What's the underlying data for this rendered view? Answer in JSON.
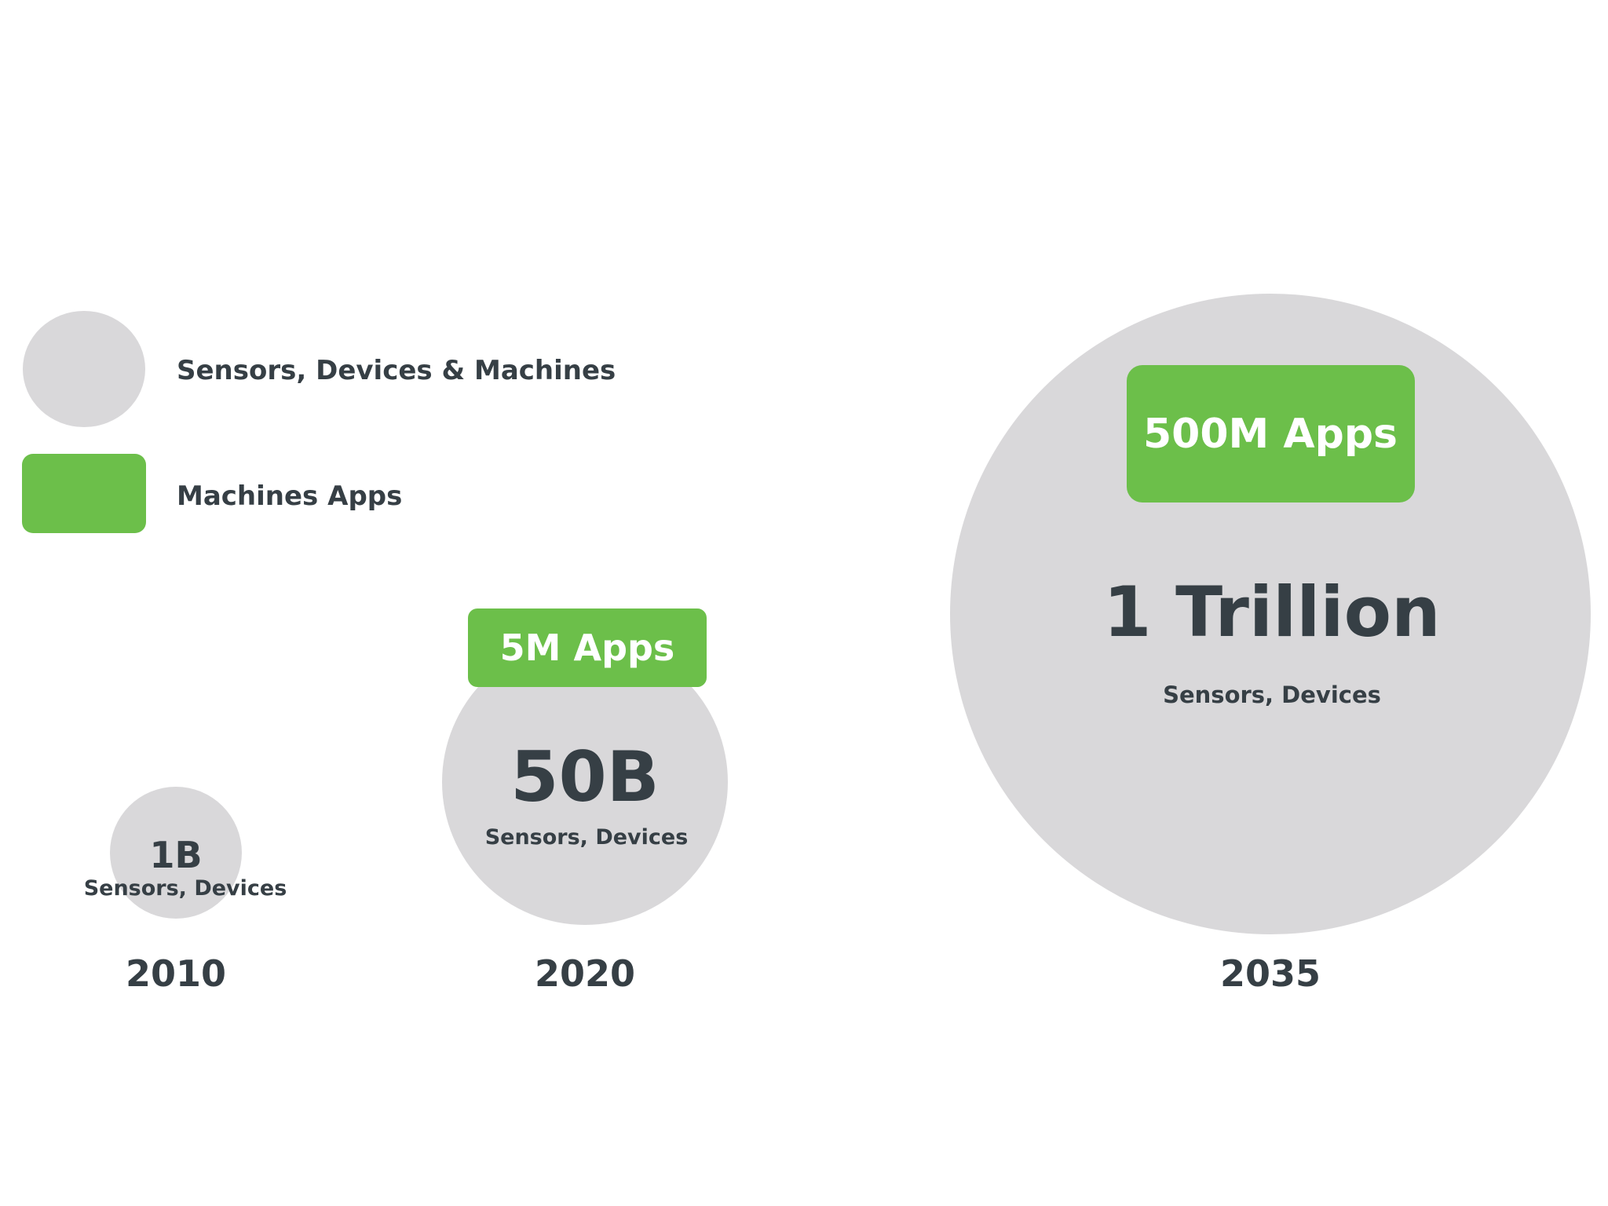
{
  "chart_data": {
    "type": "bubble",
    "title": "",
    "colors": {
      "devices": "#d9d8da",
      "apps": "#6cbf4a",
      "text_dark": "#363f45",
      "text_white": "#ffffff",
      "background": "#ffffff"
    },
    "legend": {
      "position": "top-left",
      "items": [
        {
          "label": "Sensors, Devices & Machines",
          "shape": "circle",
          "color": "#d9d8da"
        },
        {
          "label": "Machines Apps",
          "shape": "rounded-rect",
          "color": "#6cbf4a"
        }
      ]
    },
    "categories": [
      "2010",
      "2020",
      "2035"
    ],
    "series": [
      {
        "name": "Sensors, Devices & Machines",
        "values": [
          1000000000,
          50000000000,
          1000000000000
        ],
        "display_labels": [
          "1B",
          "50B",
          "1 Trillion"
        ],
        "sub_label": "Sensors, Devices"
      },
      {
        "name": "Machines Apps",
        "values": [
          null,
          5000000,
          500000000
        ],
        "display_labels": [
          null,
          "5M Apps",
          "500M Apps"
        ]
      }
    ]
  }
}
